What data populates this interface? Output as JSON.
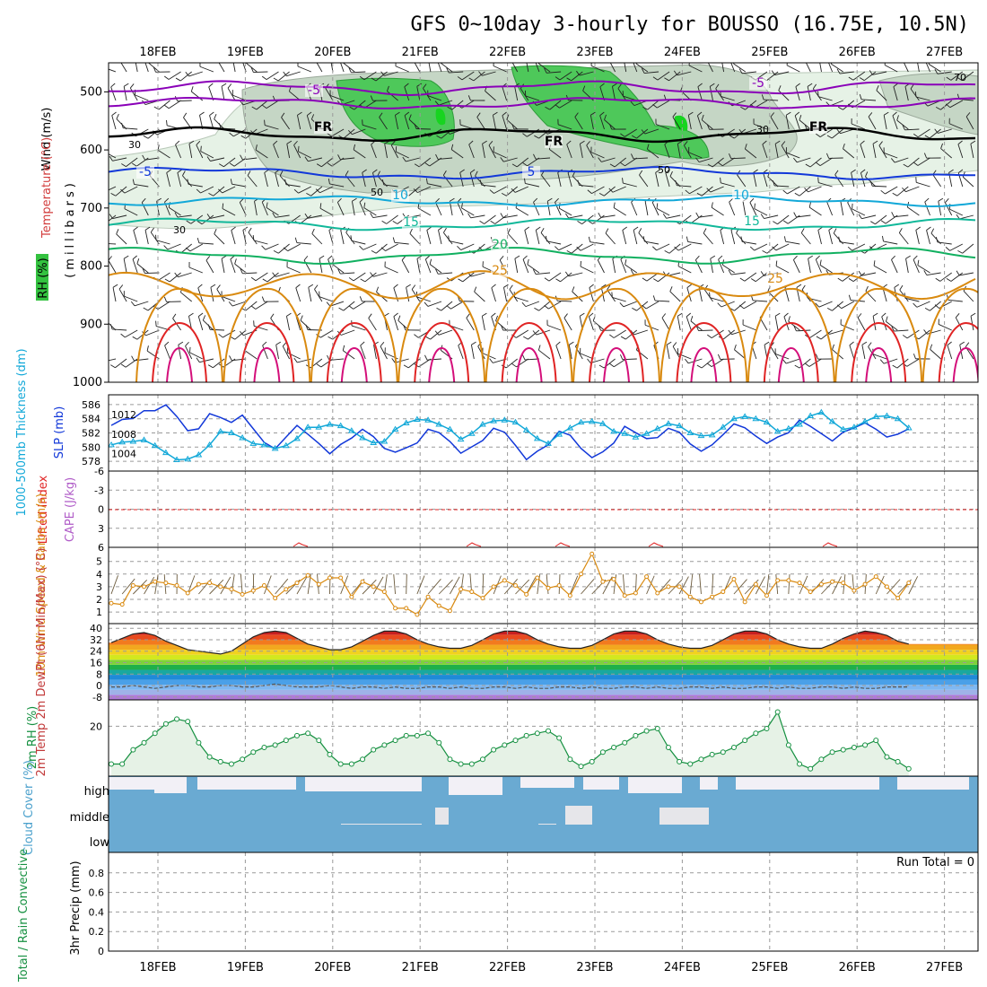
{
  "title": "GFS 0~10day 3-hourly for BOUSSO (16.75E, 10.5N)",
  "dates": [
    "18FEB",
    "19FEB",
    "20FEB",
    "21FEB",
    "22FEB",
    "23FEB",
    "24FEB",
    "25FEB",
    "26FEB",
    "27FEB"
  ],
  "colors": {
    "purple": "#8a00b8",
    "blue": "#1238d9",
    "cyan": "#12a8d8",
    "teal": "#11b89a",
    "green": "#11b060",
    "orange": "#d98a10",
    "red": "#e02424",
    "magenta": "#d40f7a",
    "sea_green": "#159040",
    "cloud_blue": "#6aaad2",
    "rh_fill_light": "#e6f2e6",
    "rh_fill_mid": "#c2d4c2",
    "rh_fill_green": "#4ec85a"
  },
  "chart_data": [
    {
      "type": "contour",
      "panel": "upper-air",
      "ylabel_wind": "Wind (m/s)",
      "ylabel_temp": "Temperature (°C)",
      "ylabel_rh": "RH (%)",
      "ylabel_units": "(millibars)",
      "y_ticks": [
        500,
        600,
        700,
        800,
        900,
        1000
      ],
      "ylim": [
        450,
        1000
      ],
      "isotherm_labels": [
        {
          "text": "-5",
          "color": "purple"
        },
        {
          "text": "-5",
          "color": "purple"
        },
        {
          "text": "FR",
          "color": "black"
        },
        {
          "text": "FR",
          "color": "black"
        },
        {
          "text": "FR",
          "color": "black"
        },
        {
          "text": "-5",
          "color": "blue"
        },
        {
          "text": "5",
          "color": "blue"
        },
        {
          "text": "10",
          "color": "cyan"
        },
        {
          "text": "10",
          "color": "cyan"
        },
        {
          "text": "15",
          "color": "teal"
        },
        {
          "text": "15",
          "color": "teal"
        },
        {
          "text": "20",
          "color": "green"
        },
        {
          "text": "25",
          "color": "orange"
        },
        {
          "text": "25",
          "color": "orange"
        }
      ],
      "rh_labels": [
        "30",
        "30",
        "50",
        "50",
        "30",
        "70"
      ]
    },
    {
      "type": "line",
      "panel": "slp-thickness",
      "ylabel_thickness": "1000-500mb Thickness (dm)",
      "ylabel_slp": "SLP (mb)",
      "thickness_ticks": [
        578,
        580,
        582,
        584,
        586
      ],
      "slp_ticks": [
        1004,
        1008,
        1012
      ],
      "series": [
        {
          "name": "SLP (mb)",
          "color": "blue",
          "values": [
            1009.8,
            1011.0,
            1011.2,
            1012.8,
            1012.8,
            1014.0,
            1011.6,
            1008.7,
            1009.1,
            1012.2,
            1011.4,
            1010.4,
            1011.9,
            1009.1,
            1006.3,
            1005.0,
            1007.4,
            1009.8,
            1008.0,
            1006.1,
            1004.0,
            1005.9,
            1007.2,
            1009.0,
            1007.5,
            1005.1,
            1004.3,
            1005.2,
            1006.2,
            1009.0,
            1008.3,
            1006.5,
            1004.1,
            1005.4,
            1006.7,
            1009.2,
            1008.4,
            1005.7,
            1002.8,
            1004.5,
            1005.8,
            1008.6,
            1007.8,
            1005.1,
            1003.2,
            1004.4,
            1006.2,
            1009.6,
            1008.3,
            1007.1,
            1007.3,
            1009.2,
            1008.4,
            1006.0,
            1004.5,
            1005.8,
            1007.9,
            1010.1,
            1009.3,
            1007.6,
            1006.1,
            1007.4,
            1008.3,
            1010.9,
            1009.6,
            1008.1,
            1006.6,
            1008.4,
            1009.3,
            1010.3,
            1009.0,
            1007.4,
            1008.0,
            1009.1
          ]
        },
        {
          "name": "1000-500mb Thickness (dm)",
          "color": "cyan",
          "values": [
            580.3,
            580.7,
            580.8,
            581.0,
            580.2,
            579.2,
            578.2,
            578.3,
            578.9,
            580.3,
            582.2,
            582.0,
            581.3,
            580.5,
            580.3,
            579.8,
            580.2,
            581.2,
            582.8,
            582.8,
            583.2,
            583.0,
            582.3,
            581.3,
            580.6,
            580.8,
            582.5,
            583.4,
            583.9,
            583.8,
            583.2,
            582.5,
            581.1,
            581.9,
            583.2,
            583.7,
            583.8,
            583.5,
            582.4,
            581.2,
            580.5,
            581.8,
            582.7,
            583.5,
            583.6,
            583.3,
            582.2,
            581.9,
            581.4,
            581.9,
            582.6,
            583.3,
            583.0,
            582.0,
            581.6,
            581.7,
            582.8,
            584.0,
            584.3,
            584.0,
            583.5,
            582.2,
            582.6,
            583.2,
            584.4,
            584.9,
            583.6,
            582.5,
            582.8,
            583.6,
            584.3,
            584.4,
            584.0,
            582.7
          ]
        }
      ]
    },
    {
      "type": "line",
      "panel": "stability",
      "ylabel_li": "Lifted Index",
      "ylabel_cape": "CAPE (J/kg)",
      "y_ticks": [
        "6",
        "3",
        "0",
        "-3",
        "-6"
      ],
      "li_zero_line": 0
    },
    {
      "type": "line",
      "panel": "wind10m",
      "ylabel": "10m Wind Speed & Barbs (m/s)",
      "y_ticks": [
        1,
        2,
        3,
        4,
        5
      ],
      "series": [
        {
          "name": "10m Wind Speed",
          "color": "orange",
          "values": [
            1.7,
            1.6,
            3.1,
            3.0,
            3.4,
            3.3,
            3.1,
            2.5,
            3.2,
            3.3,
            3.0,
            2.8,
            2.4,
            2.7,
            3.1,
            2.1,
            2.8,
            3.3,
            3.9,
            3.2,
            3.7,
            3.7,
            2.2,
            3.4,
            3.0,
            2.6,
            1.3,
            1.3,
            0.8,
            2.2,
            1.5,
            1.1,
            2.8,
            2.6,
            2.1,
            3.0,
            3.5,
            3.1,
            2.4,
            3.7,
            2.9,
            3.1,
            2.3,
            4.0,
            5.6,
            3.4,
            3.6,
            2.3,
            2.5,
            3.8,
            2.5,
            3.0,
            3.0,
            2.2,
            1.8,
            2.2,
            2.6,
            3.6,
            1.8,
            3.2,
            2.3,
            3.5,
            3.5,
            3.3,
            2.6,
            3.2,
            3.4,
            3.3,
            2.7,
            3.2,
            3.8,
            3.0,
            2.1,
            3.3
          ]
        }
      ]
    },
    {
      "type": "line",
      "panel": "temperature",
      "ylabel": "2m Temp 2m DewPt (6hr Min/Max) (°C)",
      "y_ticks": [
        -8,
        0,
        8,
        16,
        24,
        32,
        40
      ],
      "series": [
        {
          "name": "2m Temp",
          "color": "black",
          "values": [
            30,
            33,
            36,
            37,
            35,
            31,
            28,
            25,
            24,
            23,
            22,
            24,
            29,
            34,
            37,
            38,
            37,
            33,
            29,
            27,
            25,
            25,
            27,
            31,
            35,
            38,
            38,
            36,
            32,
            29,
            27,
            26,
            26,
            28,
            32,
            36,
            38,
            38,
            36,
            32,
            29,
            27,
            26,
            26,
            28,
            32,
            36,
            38,
            38,
            36,
            32,
            29,
            27,
            26,
            26,
            28,
            32,
            36,
            38,
            38,
            36,
            32,
            29,
            27,
            26,
            26,
            29,
            33,
            36,
            38,
            37,
            35,
            31,
            29
          ]
        },
        {
          "name": "2m DewPt",
          "color": "gray",
          "values": [
            -1,
            -1,
            0,
            -1,
            -2,
            -1,
            0,
            0,
            -1,
            -1,
            0,
            0,
            -1,
            -1,
            0,
            1,
            0,
            -1,
            -1,
            -1,
            0,
            -1,
            -2,
            -1,
            -1,
            -2,
            -1,
            -2,
            -2,
            -1,
            -1,
            -2,
            -1,
            -2,
            -2,
            -1,
            -1,
            -2,
            -1,
            -2,
            -2,
            -1,
            -1,
            -2,
            -1,
            -2,
            -2,
            -1,
            -1,
            -2,
            -1,
            -2,
            -2,
            -1,
            -1,
            -2,
            -1,
            -2,
            -2,
            -1,
            -1,
            -2,
            -1,
            -2,
            -2,
            -1,
            -1,
            -2,
            -1,
            -2,
            -2,
            -1,
            -1,
            -1
          ]
        }
      ]
    },
    {
      "type": "area",
      "panel": "rh2m",
      "ylabel": "2m RH (%)",
      "y_ticks": [
        20
      ],
      "series": [
        {
          "name": "2m RH",
          "color": "sea_green",
          "values": [
            4,
            4,
            10,
            13,
            17,
            21,
            23,
            22,
            13,
            7,
            5,
            4,
            6,
            9,
            11,
            12,
            14,
            16,
            17,
            14,
            8,
            4,
            4,
            6,
            10,
            12,
            14,
            16,
            16,
            17,
            13,
            6,
            4,
            4,
            6,
            10,
            12,
            14,
            16,
            17,
            18,
            15,
            6,
            3,
            5,
            9,
            11,
            13,
            16,
            18,
            19,
            11,
            5,
            4,
            6,
            8,
            9,
            11,
            14,
            17,
            19,
            26,
            12,
            4,
            2,
            6,
            9,
            10,
            11,
            12,
            14,
            7,
            5,
            2
          ]
        }
      ]
    },
    {
      "type": "bar",
      "panel": "cloud-cover",
      "ylabel": "Cloud Cover (%)",
      "levels": [
        "high",
        "middle",
        "low"
      ]
    },
    {
      "type": "bar",
      "panel": "precip",
      "ylabel": "3hr Precip (mm)",
      "legend": "Total / Rain Convective",
      "y_ticks": [
        "0",
        "0.2",
        "0.4",
        "0.6",
        "0.8"
      ],
      "annotation": "Run Total = 0"
    }
  ]
}
